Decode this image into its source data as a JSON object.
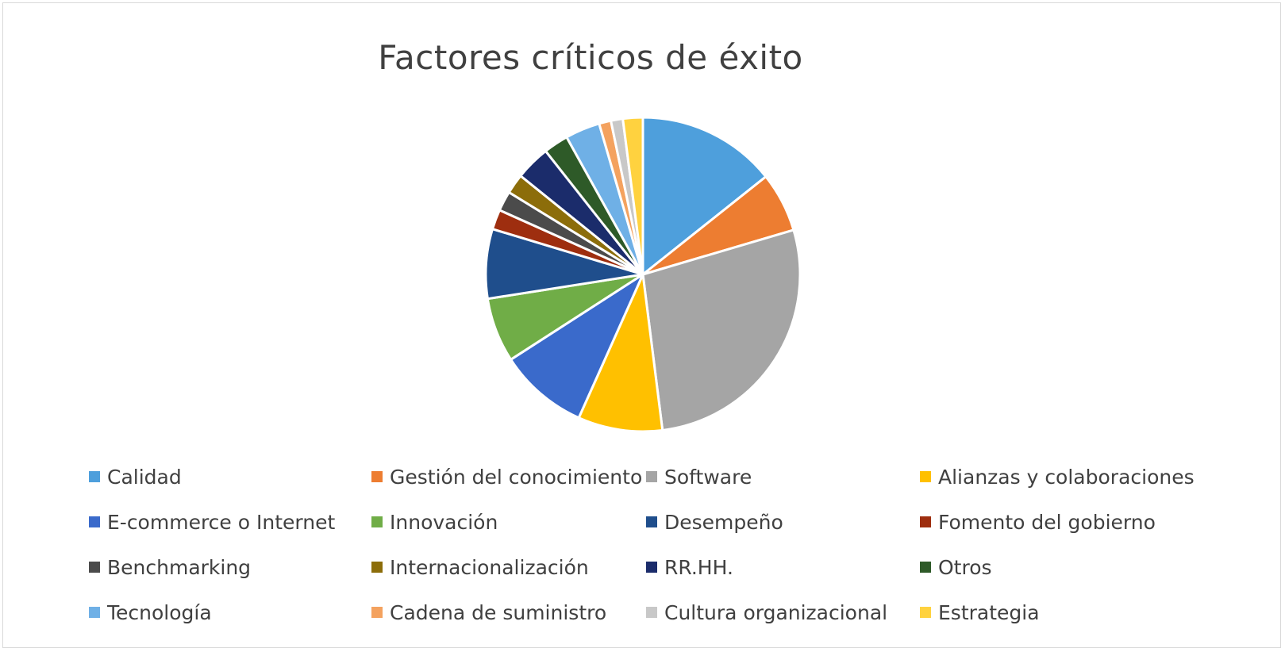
{
  "chart_data": {
    "type": "pie",
    "title": "Factores críticos de éxito",
    "legend_position": "bottom",
    "categories": [
      "Calidad",
      "Gestión del conocimiento",
      "Software",
      "Alianzas y colaboraciones",
      "E-commerce o Internet",
      "Innovación",
      "Desempeño",
      "Fomento del gobierno",
      "Benchmarking",
      "Internacionalización",
      "RR.HH.",
      "Otros",
      "Tecnología",
      "Cadena de suministro",
      "Cultura organizacional",
      "Estrategia"
    ],
    "values": [
      14,
      6,
      27,
      8.5,
      9,
      6.5,
      7,
      2,
      2,
      2,
      3.5,
      2.5,
      3.5,
      1.2,
      1.2,
      2
    ],
    "colors": [
      "#4E9FDC",
      "#ED7D31",
      "#A5A5A5",
      "#FFC000",
      "#3A6ACB",
      "#70AD47",
      "#1F4E8C",
      "#9E2E0F",
      "#4B4B4B",
      "#8C6D0A",
      "#1B2C6B",
      "#2E5A28",
      "#6FB0E6",
      "#F4A25F",
      "#C8C8C8",
      "#FFD23F"
    ]
  }
}
